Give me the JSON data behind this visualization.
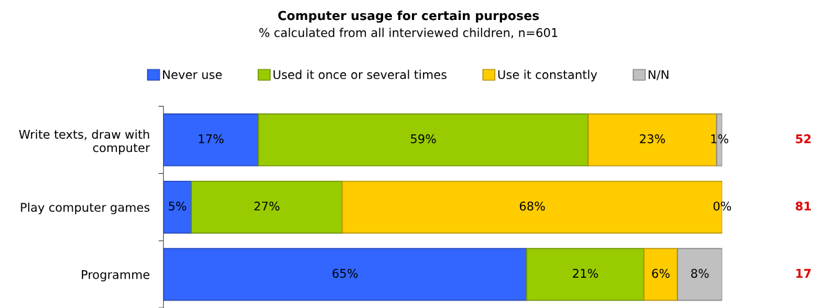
{
  "chart_data": {
    "type": "bar",
    "orientation": "horizontal",
    "stacked": true,
    "title": "Computer usage for certain purposes",
    "subtitle": "% calculated from all interviewed children, n=601",
    "categories": [
      "Write texts, draw with\ncomputer",
      "Play computer games",
      "Programme"
    ],
    "series": [
      {
        "name": "Never use",
        "color": "#3366ff",
        "values": [
          17,
          5,
          65
        ],
        "value_labels": [
          "17%",
          "5%",
          "65%"
        ]
      },
      {
        "name": "Used it once or several times",
        "color": "#99cc00",
        "values": [
          59,
          27,
          21
        ],
        "value_labels": [
          "59%",
          "27%",
          "21%"
        ]
      },
      {
        "name": "Use it constantly",
        "color": "#ffcc00",
        "values": [
          23,
          68,
          6
        ],
        "value_labels": [
          "23%",
          "68%",
          "6%"
        ]
      },
      {
        "name": "N/N",
        "color": "#c0c0c0",
        "values": [
          1,
          0,
          8
        ],
        "value_labels": [
          "1%",
          "0%",
          "8%"
        ]
      }
    ],
    "annotations": [
      "52",
      "81",
      "17"
    ],
    "legend": "top",
    "grid": false
  }
}
